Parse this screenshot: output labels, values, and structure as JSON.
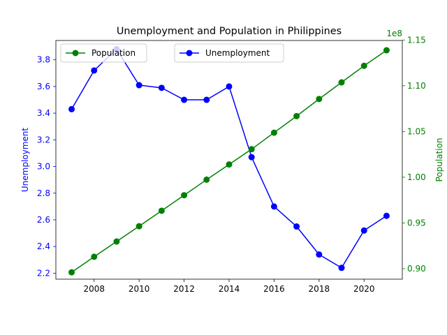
{
  "chart_data": {
    "type": "line",
    "title": "Unemployment and Population in Philippines",
    "x": [
      2007,
      2008,
      2009,
      2010,
      2011,
      2012,
      2013,
      2014,
      2015,
      2016,
      2017,
      2018,
      2019,
      2020,
      2021
    ],
    "x_ticks": [
      2008,
      2010,
      2012,
      2014,
      2016,
      2018,
      2020
    ],
    "x_tick_labels": [
      "2008",
      "2010",
      "2012",
      "2014",
      "2016",
      "2018",
      "2020"
    ],
    "xlim": [
      2006.3,
      2021.7
    ],
    "grid": false,
    "y_left": {
      "label": "Unemployment",
      "color": "#0000ff",
      "ylim": [
        2.155,
        3.945
      ],
      "ticks": [
        2.2,
        2.4,
        2.6,
        2.8,
        3.0,
        3.2,
        3.4,
        3.6,
        3.8
      ],
      "tick_labels": [
        "2.2",
        "2.4",
        "2.6",
        "2.8",
        "3.0",
        "3.2",
        "3.4",
        "3.6",
        "3.8"
      ]
    },
    "y_right": {
      "label": "Population",
      "color": "#008000",
      "offset_text": "1e8",
      "ylim": [
        0.8885,
        1.1495
      ],
      "ticks": [
        0.9,
        0.95,
        1.0,
        1.05,
        1.1,
        1.15
      ],
      "tick_labels": [
        "0.90",
        "0.95",
        "1.00",
        "1.05",
        "1.10",
        "1.15"
      ]
    },
    "series": [
      {
        "name": "Unemployment",
        "axis": "left",
        "color": "#0000ff",
        "values": [
          3.43,
          3.72,
          3.88,
          3.61,
          3.59,
          3.5,
          3.5,
          3.6,
          3.07,
          2.7,
          2.55,
          2.34,
          2.24,
          2.52,
          2.63
        ]
      },
      {
        "name": "Population",
        "axis": "right",
        "color": "#008000",
        "values": [
          0.896,
          0.913,
          0.9297,
          0.9464,
          0.9633,
          0.9803,
          0.9973,
          1.0139,
          1.0306,
          1.0487,
          1.0668,
          1.0855,
          1.1037,
          1.1218,
          1.1388
        ]
      }
    ],
    "legends": [
      {
        "position": "upper-left",
        "entries": [
          "Population"
        ]
      },
      {
        "position": "upper-center",
        "entries": [
          "Unemployment"
        ]
      }
    ]
  }
}
